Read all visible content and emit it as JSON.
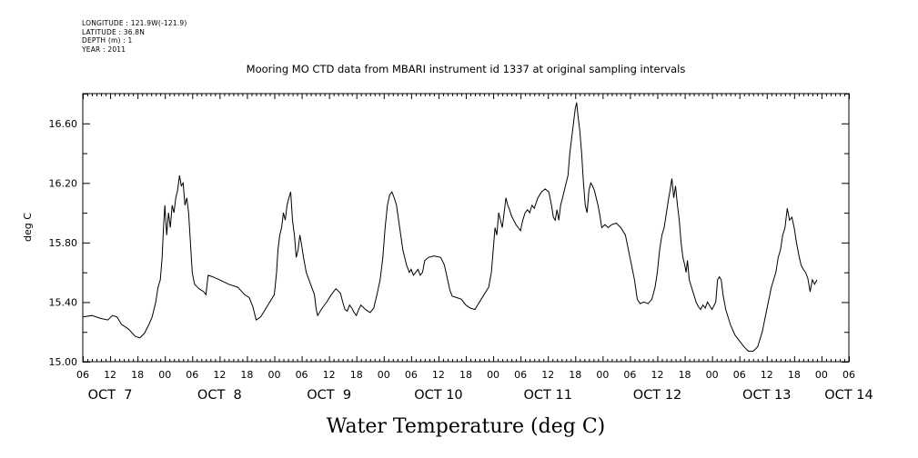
{
  "meta": {
    "longitude": "LONGITUDE : 121.9W(-121.9)",
    "latitude": "LATITUDE : 36.8N",
    "depth": "DEPTH (m) : 1",
    "year": "YEAR : 2011"
  },
  "chart_data": {
    "type": "line",
    "title": "Mooring MO CTD data from MBARI instrument id 1337 at original sampling intervals",
    "xlabel": "Water Temperature (deg C)",
    "ylabel": "deg C",
    "x_unit": "hours since 2011-10-07 00:00",
    "xlim": [
      -18,
      150
    ],
    "ylim": [
      15.0,
      16.8
    ],
    "grid": false,
    "y_ticks": [
      15.0,
      15.4,
      15.8,
      16.2,
      16.6
    ],
    "y_tick_labels": [
      "15.00",
      "15.40",
      "15.80",
      "16.20",
      "16.60"
    ],
    "x_ticks": [
      -18,
      -12,
      -6,
      0,
      6,
      12,
      18,
      24,
      30,
      36,
      42,
      48,
      54,
      60,
      66,
      72,
      78,
      84,
      90,
      96,
      102,
      108,
      114,
      120,
      126,
      132,
      138,
      144,
      150
    ],
    "x_tick_labels": [
      "06",
      "12",
      "18",
      "00",
      "06",
      "12",
      "18",
      "00",
      "06",
      "12",
      "18",
      "00",
      "06",
      "12",
      "18",
      "00",
      "06",
      "12",
      "18",
      "00",
      "06",
      "12",
      "18",
      "00",
      "06",
      "12",
      "18",
      "00",
      "06"
    ],
    "day_labels": [
      {
        "x": -12,
        "label": "OCT  7"
      },
      {
        "x": 12,
        "label": "OCT  8"
      },
      {
        "x": 36,
        "label": "OCT  9"
      },
      {
        "x": 60,
        "label": "OCT 10"
      },
      {
        "x": 84,
        "label": "OCT 11"
      },
      {
        "x": 108,
        "label": "OCT 12"
      },
      {
        "x": 132,
        "label": "OCT 13"
      },
      {
        "x": 150,
        "label": "OCT 14"
      }
    ],
    "series": [
      {
        "color": "#000000",
        "points": [
          [
            -18,
            15.3
          ],
          [
            -16,
            15.31
          ],
          [
            -14,
            15.29
          ],
          [
            -12.5,
            15.28
          ],
          [
            -11.5,
            15.31
          ],
          [
            -10.5,
            15.3
          ],
          [
            -9.5,
            15.25
          ],
          [
            -8,
            15.22
          ],
          [
            -6.5,
            15.17
          ],
          [
            -5.5,
            15.16
          ],
          [
            -4.5,
            15.19
          ],
          [
            -3.5,
            15.25
          ],
          [
            -2.8,
            15.3
          ],
          [
            -2,
            15.4
          ],
          [
            -1.5,
            15.5
          ],
          [
            -1,
            15.55
          ],
          [
            -0.6,
            15.7
          ],
          [
            -0.3,
            15.9
          ],
          [
            0,
            16.05
          ],
          [
            0.4,
            15.85
          ],
          [
            0.8,
            16.0
          ],
          [
            1.2,
            15.9
          ],
          [
            1.6,
            16.05
          ],
          [
            2,
            16.0
          ],
          [
            2.4,
            16.1
          ],
          [
            2.8,
            16.15
          ],
          [
            3.2,
            16.25
          ],
          [
            3.6,
            16.18
          ],
          [
            4,
            16.2
          ],
          [
            4.4,
            16.05
          ],
          [
            4.8,
            16.1
          ],
          [
            5.2,
            16.0
          ],
          [
            5.6,
            15.8
          ],
          [
            6,
            15.6
          ],
          [
            6.5,
            15.52
          ],
          [
            7.5,
            15.49
          ],
          [
            8.5,
            15.47
          ],
          [
            9,
            15.45
          ],
          [
            9.5,
            15.58
          ],
          [
            10.5,
            15.57
          ],
          [
            12,
            15.55
          ],
          [
            14,
            15.52
          ],
          [
            16,
            15.5
          ],
          [
            17.5,
            15.45
          ],
          [
            18.5,
            15.43
          ],
          [
            19.3,
            15.37
          ],
          [
            20,
            15.28
          ],
          [
            21,
            15.3
          ],
          [
            22,
            15.35
          ],
          [
            23,
            15.4
          ],
          [
            24,
            15.45
          ],
          [
            24.5,
            15.6
          ],
          [
            24.8,
            15.75
          ],
          [
            25.2,
            15.85
          ],
          [
            25.6,
            15.9
          ],
          [
            26,
            16.0
          ],
          [
            26.4,
            15.95
          ],
          [
            26.8,
            16.05
          ],
          [
            27.2,
            16.1
          ],
          [
            27.6,
            16.14
          ],
          [
            28,
            15.95
          ],
          [
            28.4,
            15.85
          ],
          [
            28.8,
            15.7
          ],
          [
            29.2,
            15.75
          ],
          [
            29.6,
            15.85
          ],
          [
            30,
            15.78
          ],
          [
            30.4,
            15.7
          ],
          [
            31,
            15.6
          ],
          [
            31.6,
            15.55
          ],
          [
            32.2,
            15.5
          ],
          [
            32.8,
            15.45
          ],
          [
            33.2,
            15.35
          ],
          [
            33.5,
            15.31
          ],
          [
            34.5,
            15.36
          ],
          [
            35.5,
            15.4
          ],
          [
            36.5,
            15.45
          ],
          [
            37.5,
            15.49
          ],
          [
            38.5,
            15.46
          ],
          [
            39,
            15.4
          ],
          [
            39.5,
            15.35
          ],
          [
            40,
            15.34
          ],
          [
            40.5,
            15.38
          ],
          [
            41,
            15.36
          ],
          [
            41.5,
            15.33
          ],
          [
            42,
            15.31
          ],
          [
            42.5,
            15.35
          ],
          [
            43,
            15.38
          ],
          [
            44,
            15.35
          ],
          [
            45,
            15.33
          ],
          [
            45.8,
            15.36
          ],
          [
            46.5,
            15.45
          ],
          [
            47.2,
            15.55
          ],
          [
            47.8,
            15.7
          ],
          [
            48.3,
            15.9
          ],
          [
            48.8,
            16.05
          ],
          [
            49.3,
            16.12
          ],
          [
            49.8,
            16.14
          ],
          [
            50.3,
            16.1
          ],
          [
            50.8,
            16.05
          ],
          [
            51.5,
            15.9
          ],
          [
            52.2,
            15.75
          ],
          [
            53,
            15.65
          ],
          [
            53.6,
            15.6
          ],
          [
            54,
            15.62
          ],
          [
            54.5,
            15.58
          ],
          [
            55,
            15.6
          ],
          [
            55.5,
            15.62
          ],
          [
            56,
            15.58
          ],
          [
            56.5,
            15.6
          ],
          [
            57,
            15.68
          ],
          [
            57.8,
            15.7
          ],
          [
            59,
            15.71
          ],
          [
            60.5,
            15.7
          ],
          [
            61.3,
            15.65
          ],
          [
            62,
            15.55
          ],
          [
            62.5,
            15.48
          ],
          [
            63,
            15.44
          ],
          [
            64,
            15.43
          ],
          [
            65,
            15.42
          ],
          [
            66,
            15.38
          ],
          [
            67,
            15.36
          ],
          [
            68,
            15.35
          ],
          [
            69,
            15.4
          ],
          [
            70,
            15.45
          ],
          [
            71,
            15.5
          ],
          [
            71.6,
            15.6
          ],
          [
            72,
            15.75
          ],
          [
            72.4,
            15.9
          ],
          [
            72.8,
            15.85
          ],
          [
            73.2,
            16.0
          ],
          [
            73.6,
            15.95
          ],
          [
            74,
            15.9
          ],
          [
            74.4,
            16.0
          ],
          [
            74.8,
            16.1
          ],
          [
            75.2,
            16.05
          ],
          [
            75.6,
            16.02
          ],
          [
            76,
            15.98
          ],
          [
            76.5,
            15.95
          ],
          [
            77,
            15.92
          ],
          [
            77.5,
            15.9
          ],
          [
            78,
            15.88
          ],
          [
            78.5,
            15.95
          ],
          [
            79,
            16.0
          ],
          [
            79.5,
            16.02
          ],
          [
            80,
            16.0
          ],
          [
            80.5,
            16.05
          ],
          [
            81,
            16.03
          ],
          [
            81.8,
            16.1
          ],
          [
            82.6,
            16.14
          ],
          [
            83.4,
            16.16
          ],
          [
            84.2,
            16.14
          ],
          [
            84.8,
            16.05
          ],
          [
            85.2,
            15.97
          ],
          [
            85.6,
            15.95
          ],
          [
            86,
            16.02
          ],
          [
            86.4,
            15.95
          ],
          [
            86.8,
            16.05
          ],
          [
            87.2,
            16.1
          ],
          [
            87.6,
            16.15
          ],
          [
            88,
            16.2
          ],
          [
            88.4,
            16.25
          ],
          [
            88.8,
            16.4
          ],
          [
            89.2,
            16.5
          ],
          [
            89.6,
            16.6
          ],
          [
            90,
            16.7
          ],
          [
            90.3,
            16.74
          ],
          [
            90.6,
            16.65
          ],
          [
            91,
            16.55
          ],
          [
            91.4,
            16.4
          ],
          [
            91.8,
            16.2
          ],
          [
            92.2,
            16.05
          ],
          [
            92.6,
            16.0
          ],
          [
            93,
            16.15
          ],
          [
            93.4,
            16.2
          ],
          [
            93.8,
            16.18
          ],
          [
            94.2,
            16.15
          ],
          [
            94.6,
            16.1
          ],
          [
            95,
            16.05
          ],
          [
            95.4,
            15.98
          ],
          [
            95.8,
            15.9
          ],
          [
            96.5,
            15.92
          ],
          [
            97.2,
            15.9
          ],
          [
            98,
            15.92
          ],
          [
            99,
            15.93
          ],
          [
            100,
            15.9
          ],
          [
            101,
            15.85
          ],
          [
            102,
            15.7
          ],
          [
            103,
            15.55
          ],
          [
            103.6,
            15.42
          ],
          [
            104.2,
            15.39
          ],
          [
            105,
            15.4
          ],
          [
            106,
            15.39
          ],
          [
            106.8,
            15.42
          ],
          [
            107.5,
            15.5
          ],
          [
            108,
            15.6
          ],
          [
            108.5,
            15.75
          ],
          [
            109,
            15.85
          ],
          [
            109.5,
            15.9
          ],
          [
            110,
            16.0
          ],
          [
            110.5,
            16.1
          ],
          [
            110.8,
            16.15
          ],
          [
            111.2,
            16.23
          ],
          [
            111.6,
            16.1
          ],
          [
            112,
            16.18
          ],
          [
            112.4,
            16.05
          ],
          [
            112.8,
            15.95
          ],
          [
            113.2,
            15.8
          ],
          [
            113.6,
            15.7
          ],
          [
            114,
            15.65
          ],
          [
            114.3,
            15.6
          ],
          [
            114.6,
            15.68
          ],
          [
            115,
            15.55
          ],
          [
            115.5,
            15.5
          ],
          [
            116,
            15.45
          ],
          [
            116.5,
            15.4
          ],
          [
            117,
            15.37
          ],
          [
            117.5,
            15.35
          ],
          [
            118,
            15.38
          ],
          [
            118.5,
            15.36
          ],
          [
            119,
            15.4
          ],
          [
            120,
            15.35
          ],
          [
            120.8,
            15.4
          ],
          [
            121.2,
            15.55
          ],
          [
            121.6,
            15.57
          ],
          [
            122,
            15.55
          ],
          [
            122.4,
            15.45
          ],
          [
            123,
            15.35
          ],
          [
            124,
            15.25
          ],
          [
            125,
            15.18
          ],
          [
            126,
            15.14
          ],
          [
            127,
            15.1
          ],
          [
            128,
            15.07
          ],
          [
            129,
            15.07
          ],
          [
            130,
            15.1
          ],
          [
            131,
            15.2
          ],
          [
            132,
            15.35
          ],
          [
            133,
            15.5
          ],
          [
            134,
            15.6
          ],
          [
            134.5,
            15.7
          ],
          [
            135,
            15.75
          ],
          [
            135.5,
            15.85
          ],
          [
            136,
            15.9
          ],
          [
            136.5,
            16.03
          ],
          [
            137,
            15.95
          ],
          [
            137.5,
            15.97
          ],
          [
            138,
            15.9
          ],
          [
            138.5,
            15.8
          ],
          [
            139,
            15.72
          ],
          [
            139.5,
            15.65
          ],
          [
            140,
            15.62
          ],
          [
            140.5,
            15.6
          ],
          [
            141,
            15.56
          ],
          [
            141.5,
            15.47
          ],
          [
            142,
            15.55
          ],
          [
            142.5,
            15.52
          ],
          [
            143,
            15.55
          ]
        ]
      }
    ]
  }
}
